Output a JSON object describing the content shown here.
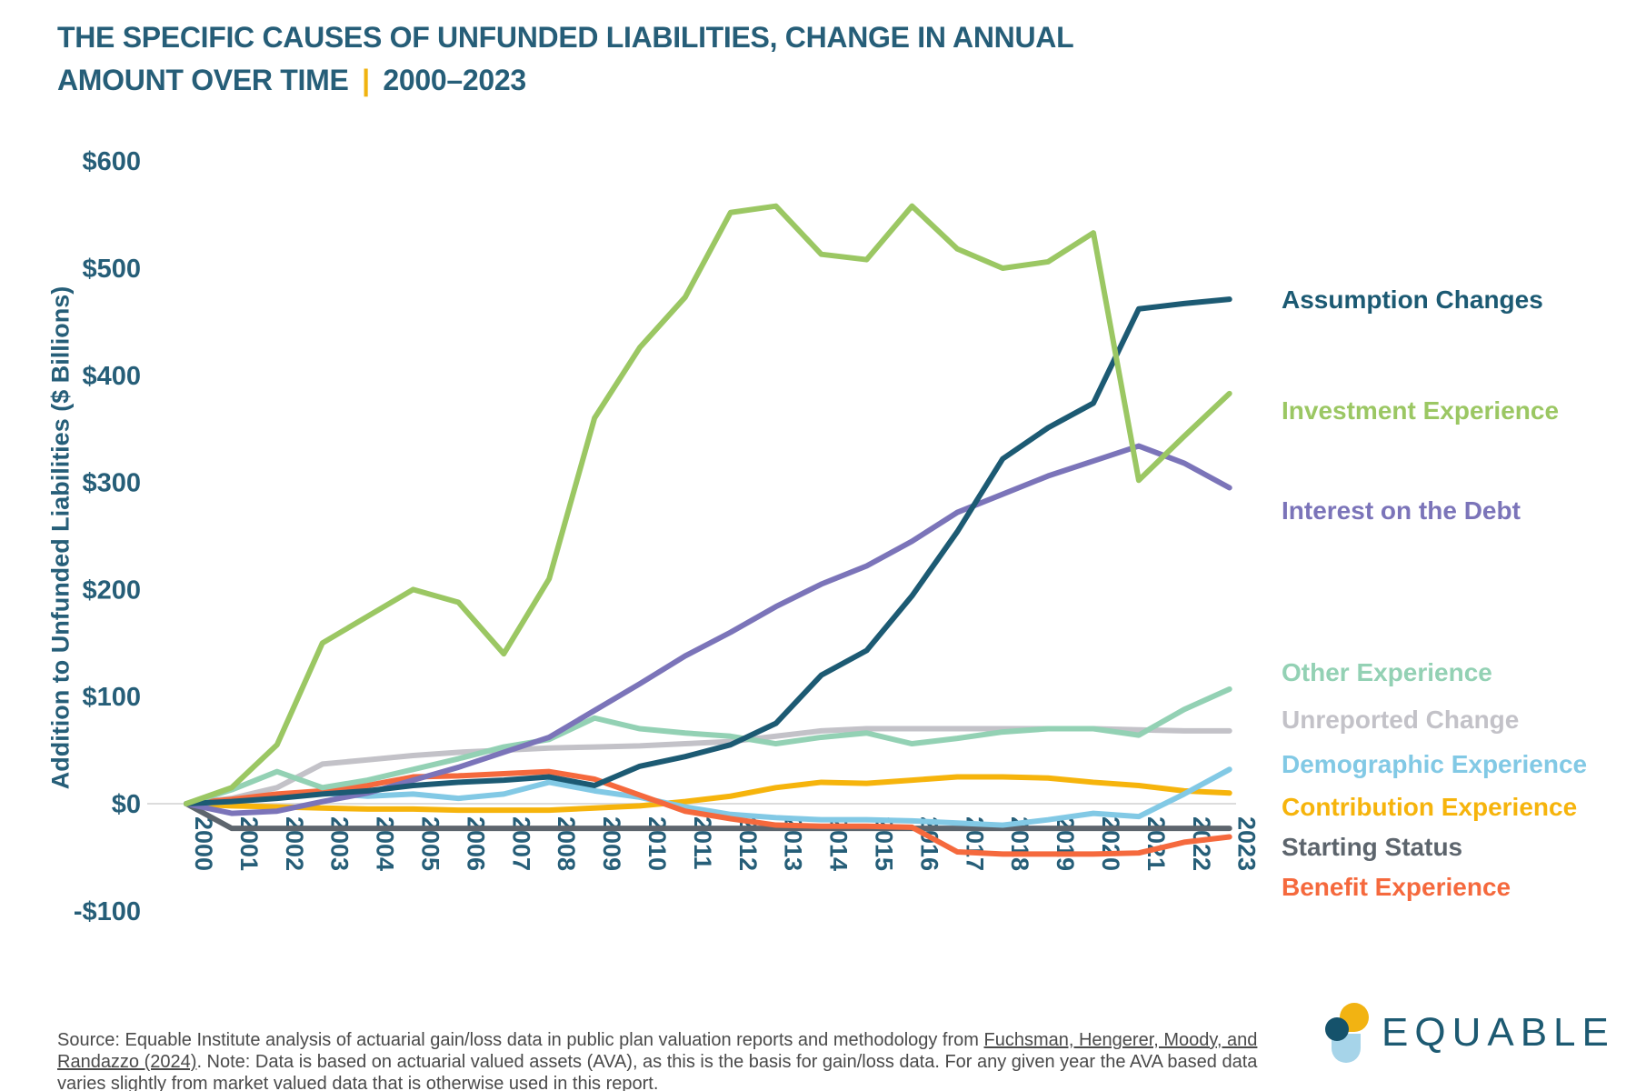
{
  "header": {
    "title_line1": "THE SPECIFIC CAUSES OF UNFUNDED LIABILITIES, CHANGE IN ANNUAL",
    "title_line2": "AMOUNT OVER TIME",
    "separator": "|",
    "range": "2000–2023",
    "accent_color": "#F0B310",
    "title_color": "#265E78"
  },
  "chart_data": {
    "type": "line",
    "title": "The specific causes of unfunded liabilities, change in annual amount over time, 2000-2023",
    "xlabel": "",
    "ylabel": "Addition to Unfunded Liabilities ($ Billions)",
    "x": [
      2000,
      2001,
      2002,
      2003,
      2004,
      2005,
      2006,
      2007,
      2008,
      2009,
      2010,
      2011,
      2012,
      2013,
      2014,
      2015,
      2016,
      2017,
      2018,
      2019,
      2020,
      2021,
      2022,
      2023
    ],
    "ylim": [
      -100,
      600
    ],
    "grid": "zero-line-only",
    "legend_position": "right",
    "y_ticks": [
      {
        "label": "$600",
        "value": 600
      },
      {
        "label": "$500",
        "value": 500
      },
      {
        "label": "$400",
        "value": 400
      },
      {
        "label": "$300",
        "value": 300
      },
      {
        "label": "$200",
        "value": 200
      },
      {
        "label": "$100",
        "value": 100
      },
      {
        "label": "$0",
        "value": 0
      },
      {
        "label": "-$100",
        "value": -100
      }
    ],
    "series": [
      {
        "key": "starting",
        "name": "Starting Status",
        "color": "#5D656D",
        "values": [
          0,
          -23,
          -23,
          -23,
          -23,
          -23,
          -23,
          -23,
          -23,
          -23,
          -23,
          -23,
          -23,
          -23,
          -23,
          -23,
          -23,
          -23,
          -23,
          -23,
          -23,
          -23,
          -23,
          -23
        ]
      },
      {
        "key": "unreported",
        "name": "Unreported Change",
        "color": "#C3C2C8",
        "values": [
          0,
          5,
          15,
          37,
          41,
          45,
          48,
          50,
          52,
          53,
          54,
          56,
          58,
          63,
          68,
          70,
          70,
          70,
          70,
          70,
          70,
          69,
          68,
          68
        ]
      },
      {
        "key": "contribution",
        "name": "Contribution Experience",
        "color": "#F6B40C",
        "values": [
          0,
          -2,
          -3,
          -4,
          -5,
          -5,
          -6,
          -6,
          -6,
          -4,
          -2,
          2,
          7,
          15,
          20,
          19,
          22,
          25,
          25,
          24,
          20,
          17,
          12,
          10
        ]
      },
      {
        "key": "demographic",
        "name": "Demographic Experience",
        "color": "#82C9E5",
        "values": [
          0,
          2,
          6,
          10,
          7,
          9,
          5,
          9,
          20,
          12,
          6,
          -3,
          -10,
          -13,
          -15,
          -15,
          -16,
          -18,
          -20,
          -15,
          -9,
          -12,
          9,
          32
        ]
      },
      {
        "key": "benefit",
        "name": "Benefit Experience",
        "color": "#F5693D",
        "values": [
          0,
          4,
          9,
          12,
          17,
          25,
          26,
          28,
          30,
          23,
          8,
          -7,
          -14,
          -20,
          -21,
          -21,
          -22,
          -45,
          -47,
          -47,
          -47,
          -46,
          -36,
          -31
        ]
      },
      {
        "key": "other",
        "name": "Other Experience",
        "color": "#93D1B4",
        "values": [
          0,
          13,
          30,
          15,
          22,
          32,
          42,
          53,
          60,
          80,
          70,
          66,
          63,
          56,
          62,
          66,
          56,
          61,
          67,
          70,
          70,
          64,
          88,
          107
        ]
      },
      {
        "key": "interest",
        "name": "Interest on the Debt",
        "color": "#7B74B9",
        "values": [
          0,
          -9,
          -7,
          2,
          10,
          22,
          34,
          48,
          62,
          87,
          112,
          138,
          160,
          184,
          205,
          222,
          245,
          272,
          289,
          306,
          320,
          334,
          318,
          295
        ]
      },
      {
        "key": "assumption",
        "name": "Assumption Changes",
        "color": "#1C5A73",
        "values": [
          0,
          2,
          5,
          9,
          12,
          17,
          20,
          22,
          25,
          17,
          35,
          44,
          55,
          75,
          120,
          143,
          194,
          254,
          322,
          351,
          374,
          462,
          467,
          471
        ]
      },
      {
        "key": "investment",
        "name": "Investment Experience",
        "color": "#9BC763",
        "values": [
          0,
          15,
          55,
          150,
          175,
          200,
          188,
          140,
          210,
          360,
          426,
          473,
          552,
          558,
          513,
          508,
          558,
          518,
          500,
          506,
          533,
          302,
          343,
          383
        ]
      }
    ],
    "legend_order": [
      "assumption",
      "investment",
      "interest",
      "other",
      "unreported",
      "demographic",
      "contribution",
      "starting",
      "benefit"
    ],
    "zero_line_color": "#DCDCDC"
  },
  "footer": {
    "source_prefix": "Source: Equable Institute analysis of actuarial gain/loss data in public plan valuation reports and methodology from ",
    "source_link": "Fuchsman, Hengerer, Moody, and Randazzo (2024)",
    "source_suffix": ". Note: Data is based on actuarial valued assets (AVA), as this is the basis for gain/loss data. For any given year the AVA based data varies slightly from market valued data that is otherwise used in this report.",
    "logo_text": "EQUABLE"
  }
}
